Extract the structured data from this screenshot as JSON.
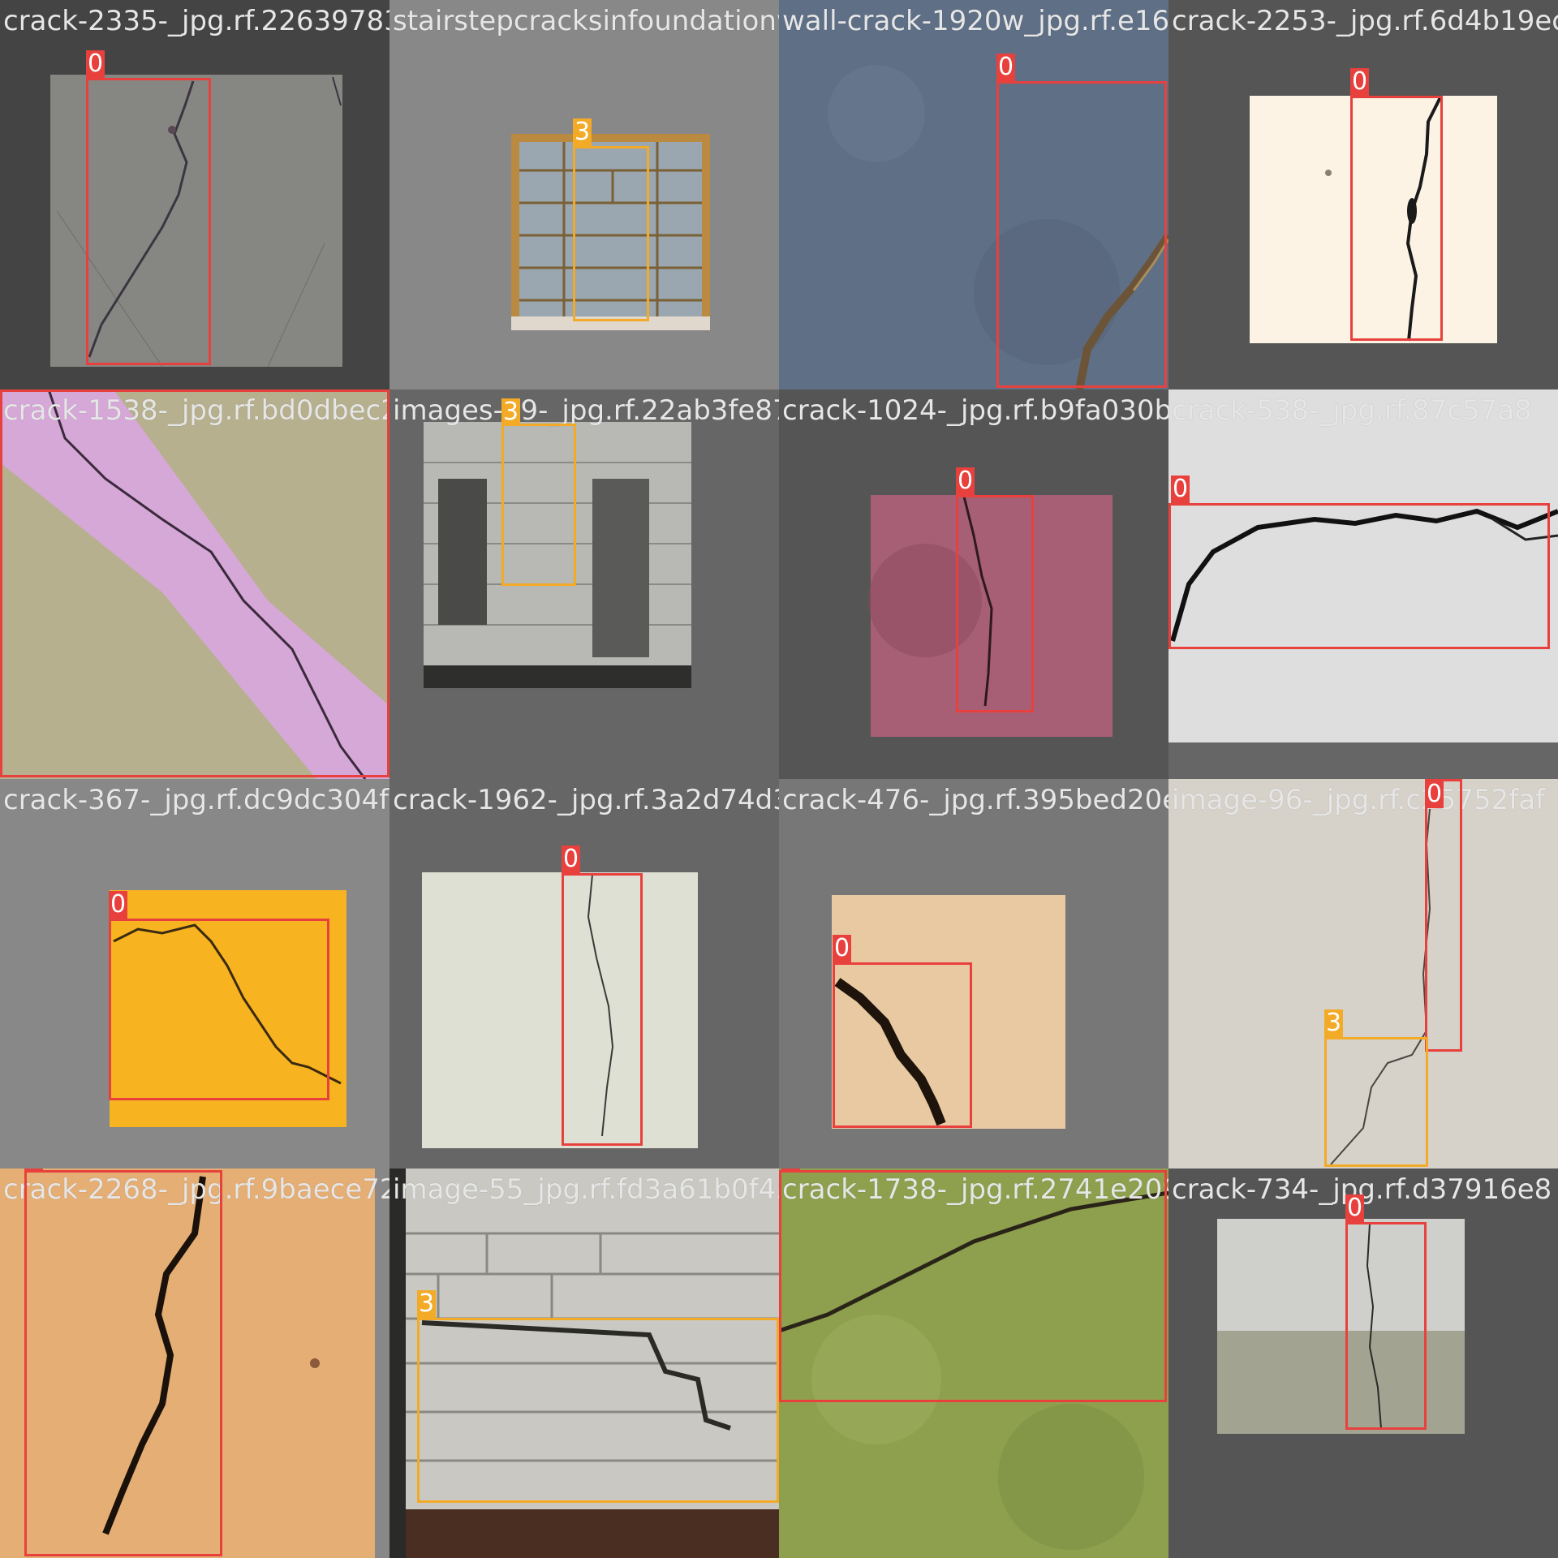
{
  "grid": {
    "rows": 4,
    "cols": 4
  },
  "class_colors": {
    "0": "#e8413d",
    "3": "#f3aa27"
  },
  "tiles": [
    {
      "filename": "crack-2335-_jpg.rf.22639783708239d5461823",
      "background": "#444444",
      "photo_tone": "#8a8a86",
      "labels": [
        "0"
      ]
    },
    {
      "filename": "stairstepcracksinfoundationwall-1920w_jpg.rf.e16b4cf2f2dd22842251ff1",
      "background": "#888888",
      "photo_tone": "#b98a3f",
      "labels": [
        "3"
      ]
    },
    {
      "filename": "wall-crack-1920w_jpg.rf.e16b4cf2f2dd122842251ff1",
      "background": "#555555",
      "photo_tone": "#5e6f86",
      "labels": [
        "0"
      ]
    },
    {
      "filename": "crack-2253-_jpg.rf.6d4b19ec",
      "background": "#555555",
      "photo_tone": "#fdf3e4",
      "labels": [
        "0"
      ]
    },
    {
      "filename": "crack-1538-_jpg.rf.bd0dbec2c2624f5e9e48c",
      "background": "#777777",
      "photo_tone": "#b6b08e",
      "labels": [
        "0"
      ]
    },
    {
      "filename": "images-39-_jpg.rf.22ab3fe870fad44021d0ebab",
      "background": "#666666",
      "photo_tone": "#9c9a96",
      "labels": [
        "3"
      ]
    },
    {
      "filename": "crack-1024-_jpg.rf.b9fa030b2b3c5e6dd5",
      "background": "#555555",
      "photo_tone": "#a65f74",
      "labels": [
        "0"
      ]
    },
    {
      "filename": "crack-538-_jpg.rf.87c57a8",
      "background": "#d8d8d8",
      "photo_tone": "#dedede",
      "labels": [
        "0"
      ]
    },
    {
      "filename": "crack-367-_jpg.rf.dc9dc304f6d49219712ab6",
      "background": "#888888",
      "photo_tone": "#f8b320",
      "labels": [
        "0"
      ]
    },
    {
      "filename": "crack-1962-_jpg.rf.3a2d74d3e7ad57706d958",
      "background": "#666666",
      "photo_tone": "#dfe0d4",
      "labels": [
        "0"
      ]
    },
    {
      "filename": "crack-476-_jpg.rf.395bed20e2b63f959edeb",
      "background": "#777777",
      "photo_tone": "#e8c9a2",
      "labels": [
        "0"
      ]
    },
    {
      "filename": "image-96-_jpg.rf.c25752faf",
      "background": "#d0ccc4",
      "photo_tone": "#d6d2ca",
      "labels": [
        "0",
        "3"
      ]
    },
    {
      "filename": "crack-2268-_jpg.rf.9baece72baad0750d93650",
      "background": "#888888",
      "photo_tone": "#e5ae74",
      "labels": [
        "0"
      ]
    },
    {
      "filename": "image-55_jpg.rf.fd3a61b0f45200b25738c2de",
      "background": "#666666",
      "photo_tone": "#c9c8c2",
      "labels": [
        "3"
      ]
    },
    {
      "filename": "crack-1738-_jpg.rf.2741e209ca5681203a4c67",
      "background": "#888888",
      "photo_tone": "#8ea04e",
      "labels": [
        "0"
      ]
    },
    {
      "filename": "crack-734-_jpg.rf.d37916e8",
      "background": "#555555",
      "photo_tone": "#cfd0cc",
      "labels": [
        "0"
      ]
    }
  ]
}
